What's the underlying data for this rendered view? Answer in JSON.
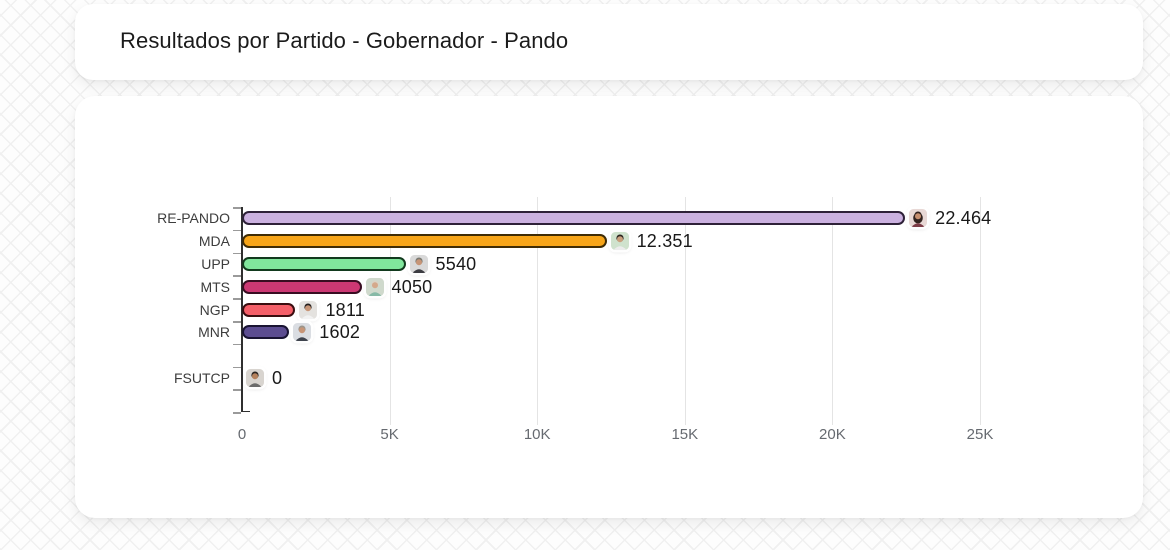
{
  "header": {
    "title": "Resultados por Partido - Gobernador - Pando"
  },
  "chart_data": {
    "type": "bar",
    "orientation": "horizontal",
    "title": "Resultados por Partido - Gobernador - Pando",
    "xlabel": "",
    "ylabel": "",
    "xlim": [
      0,
      25000
    ],
    "grid": "vertical-light-gray",
    "legend": "none",
    "total_bands": 9,
    "x_ticks": [
      {
        "label": "0",
        "value": 0
      },
      {
        "label": "5K",
        "value": 5000
      },
      {
        "label": "10K",
        "value": 10000
      },
      {
        "label": "15K",
        "value": 15000
      },
      {
        "label": "20K",
        "value": 20000
      },
      {
        "label": "25K",
        "value": 25000
      }
    ],
    "categories": [
      "RE-PANDO",
      "MDA",
      "UPP",
      "MTS",
      "NGP",
      "MNR",
      "FSUTCP"
    ],
    "values": [
      22464,
      12351,
      5540,
      4050,
      1811,
      1602,
      0
    ],
    "bars": [
      {
        "party": "RE-PANDO",
        "value": 22464,
        "value_label": "22.464",
        "band": 0,
        "fill": "#cbb1e0",
        "border": "#2e2138",
        "avatar": {
          "bg": "#e8d8d5",
          "hair": "#33231f",
          "skin": "#c68e6e",
          "shirt": "#7c3b46",
          "style": "long"
        }
      },
      {
        "party": "MDA",
        "value": 12351,
        "value_label": "12.351",
        "band": 1,
        "fill": "#f7a519",
        "border": "#3f2c05",
        "avatar": {
          "bg": "#cfe2cd",
          "hair": "#2b2420",
          "skin": "#caa07e",
          "shirt": "#ececec",
          "style": "short"
        }
      },
      {
        "party": "UPP",
        "value": 5540,
        "value_label": "5540",
        "band": 2,
        "fill": "#80e69c",
        "border": "#123a1e",
        "avatar": {
          "bg": "#d9d9d9",
          "hair": "#7a7a72",
          "skin": "#c79577",
          "shirt": "#3b3b41",
          "style": "short"
        }
      },
      {
        "party": "MTS",
        "value": 4050,
        "value_label": "4050",
        "band": 3,
        "fill": "#cc3873",
        "border": "#380d21",
        "avatar": {
          "bg": "#cfd9cc",
          "hair": "#d9d4c6",
          "skin": "#d4a98b",
          "shirt": "#86b9a6",
          "style": "short"
        }
      },
      {
        "party": "NGP",
        "value": 1811,
        "value_label": "1811",
        "band": 4,
        "fill": "#f45f69",
        "border": "#3a0d10",
        "avatar": {
          "bg": "#e4e2df",
          "hair": "#241f1d",
          "skin": "#c79577",
          "shirt": "#f2f2f2",
          "style": "short"
        }
      },
      {
        "party": "MNR",
        "value": 1602,
        "value_label": "1602",
        "band": 5,
        "fill": "#5c4d91",
        "border": "#191433",
        "avatar": {
          "bg": "#dadde2",
          "hair": "#9b958c",
          "skin": "#c79577",
          "shirt": "#3e434d",
          "style": "short"
        }
      },
      {
        "party": "FSUTCP",
        "value": 0,
        "value_label": "0",
        "band": 7,
        "fill": "#cccccc",
        "border": "#333333",
        "avatar": {
          "bg": "#d8d4cf",
          "hair": "#2a2522",
          "skin": "#b5815c",
          "shirt": "#6b6b6b",
          "style": "short"
        }
      }
    ]
  }
}
